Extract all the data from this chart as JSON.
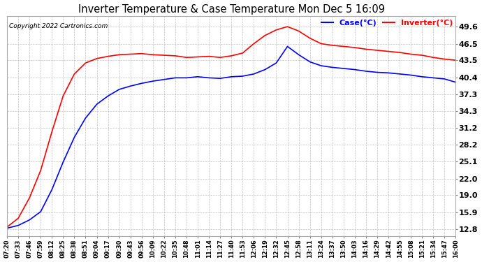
{
  "title": "Inverter Temperature & Case Temperature Mon Dec 5 16:09",
  "copyright": "Copyright 2022 Cartronics.com",
  "legend_case": "Case(°C)",
  "legend_inverter": "Inverter(°C)",
  "case_color": "blue",
  "inverter_color": "red",
  "background_color": "#ffffff",
  "plot_bg_color": "#ffffff",
  "grid_color": "#aaaaaa",
  "yticks": [
    12.8,
    15.9,
    19.0,
    22.0,
    25.1,
    28.2,
    31.2,
    34.3,
    37.3,
    40.4,
    43.5,
    46.5,
    49.6
  ],
  "ylim": [
    11.5,
    51.5
  ],
  "xtick_labels": [
    "07:20",
    "07:33",
    "07:46",
    "07:59",
    "08:12",
    "08:25",
    "08:38",
    "08:51",
    "09:04",
    "09:17",
    "09:30",
    "09:43",
    "09:56",
    "10:09",
    "10:22",
    "10:35",
    "10:48",
    "11:01",
    "11:14",
    "11:27",
    "11:40",
    "11:53",
    "12:06",
    "12:19",
    "12:32",
    "12:45",
    "12:58",
    "13:11",
    "13:24",
    "13:37",
    "13:50",
    "14:03",
    "14:16",
    "14:29",
    "14:42",
    "14:55",
    "15:08",
    "15:21",
    "15:34",
    "15:47",
    "16:00"
  ],
  "inverter_temps": [
    13.2,
    14.8,
    18.5,
    23.5,
    30.5,
    37.0,
    41.0,
    43.0,
    43.8,
    44.2,
    44.5,
    44.6,
    44.7,
    44.5,
    44.4,
    44.3,
    44.0,
    44.1,
    44.2,
    44.0,
    44.3,
    44.8,
    46.5,
    48.0,
    49.0,
    49.6,
    48.8,
    47.5,
    46.5,
    46.2,
    46.0,
    45.8,
    45.5,
    45.3,
    45.1,
    44.9,
    44.6,
    44.4,
    44.0,
    43.7,
    43.5
  ],
  "case_temps": [
    13.0,
    13.5,
    14.5,
    16.0,
    20.0,
    25.0,
    29.5,
    33.0,
    35.5,
    37.0,
    38.2,
    38.8,
    39.3,
    39.7,
    40.0,
    40.3,
    40.3,
    40.5,
    40.3,
    40.2,
    40.5,
    40.6,
    41.0,
    41.8,
    43.0,
    46.0,
    44.5,
    43.2,
    42.5,
    42.2,
    42.0,
    41.8,
    41.5,
    41.3,
    41.2,
    41.0,
    40.8,
    40.5,
    40.3,
    40.1,
    39.5
  ]
}
